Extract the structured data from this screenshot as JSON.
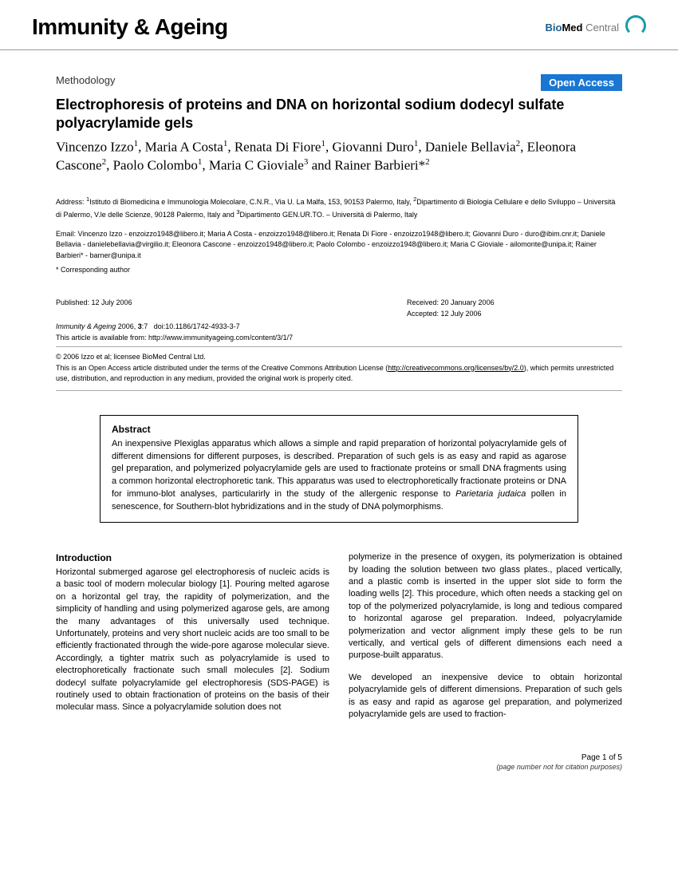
{
  "journal": "Immunity & Ageing",
  "publisher": {
    "bio": "Bio",
    "med": "Med",
    "central": " Central"
  },
  "category": "Methodology",
  "open_access": "Open Access",
  "title": "Electrophoresis of proteins and DNA on horizontal sodium dodecyl sulfate polyacrylamide gels",
  "authors_html": "Vincenzo Izzo<sup>1</sup>, Maria A Costa<sup>1</sup>, Renata Di Fiore<sup>1</sup>, Giovanni Duro<sup>1</sup>, Daniele Bellavia<sup>2</sup>, Eleonora Cascone<sup>2</sup>, Paolo Colombo<sup>1</sup>, Maria C Gioviale<sup>3</sup> and Rainer Barbieri*<sup>2</sup>",
  "address": "Address: <sup>1</sup>Istituto di Biomedicina e Immunologia Molecolare, C.N.R., Via U. La Malfa, 153, 90153 Palermo, Italy, <sup>2</sup>Dipartimento di Biologia Cellulare e dello Sviluppo – Università di Palermo, V.le delle Scienze, 90128 Palermo, Italy and <sup>3</sup>Dipartimento GEN.UR.TO. – Università di Palermo, Italy",
  "emails": "Email: Vincenzo Izzo - enzoizzo1948@libero.it; Maria A Costa - enzoizzo1948@libero.it; Renata Di Fiore - enzoizzo1948@libero.it; Giovanni Duro - duro@ibim.cnr.it; Daniele Bellavia - danielebellavia@virgilio.it; Eleonora Cascone - enzoizzo1948@libero.it; Paolo Colombo - enzoizzo1948@libero.it; Maria C Gioviale - ailomonte@unipa.it; Rainer Barbieri* - barner@unipa.it",
  "corresponding": "* Corresponding author",
  "published": "Published: 12 July 2006",
  "received": "Received: 20 January 2006",
  "accepted": "Accepted: 12 July 2006",
  "citation_html": "<em>Immunity & Ageing</em> 2006, <b>3</b>:7&nbsp;&nbsp;&nbsp;doi:10.1186/1742-4933-3-7",
  "available": "This article is available from: http://www.immunityageing.com/content/3/1/7",
  "copyright_line": "© 2006 Izzo et al; licensee BioMed Central Ltd.",
  "license_html": "This is an Open Access article distributed under the terms of the Creative Commons Attribution License (<a href=\"#\" data-interactable=\"true\" data-name=\"license-link\">http://creativecommons.org/licenses/by/2.0</a>), which permits unrestricted use, distribution, and reproduction in any medium, provided the original work is properly cited.",
  "abstract_heading": "Abstract",
  "abstract_html": "An inexpensive Plexiglas apparatus which allows a simple and rapid preparation of horizontal polyacrylamide gels of different dimensions for different purposes, is described. Preparation of such gels is as easy and rapid as agarose gel preparation, and polymerized polyacrylamide gels are used to fractionate proteins or small DNA fragments using a common horizontal electrophoretic tank. This apparatus was used to electrophoretically fractionate proteins or DNA for immuno-blot analyses, particularirly in the study of the allergenic response to <em>Parietaria judaica</em> pollen in senescence, for Southern-blot hybridizations and in the study of DNA polymorphisms.",
  "intro_heading": "Introduction",
  "col1": "Horizontal submerged agarose gel electrophoresis of nucleic acids is a basic tool of modern molecular biology [1]. Pouring melted agarose on a horizontal gel tray, the rapidity of polymerization, and the simplicity of handling and using polymerized agarose gels, are among the many advantages of this universally used technique. Unfortunately, proteins and very short nucleic acids are too small to be efficiently fractionated through the wide-pore agarose molecular sieve. Accordingly, a tighter matrix such as polyacrylamide is used to electrophoretically fractionate such small molecules [2]. Sodium dodecyl sulfate polyacrylamide gel electrophoresis (SDS-PAGE) is routinely used to obtain fractionation of proteins on the basis of their molecular mass. Since a polyacrylamide solution does not",
  "col2a": "polymerize in the presence of oxygen, its polymerization is obtained by loading the solution between two glass plates., placed vertically, and a plastic comb is inserted in the upper slot side to form the loading wells [2]. This procedure, which often needs a stacking gel on top of the polymerized polyacrylamide, is long and tedious compared to horizontal agarose gel preparation. Indeed, polyacrylamide polymerization and vector alignment imply these gels to be run vertically, and vertical gels of different dimensions each need a purpose-built apparatus.",
  "col2b": "We developed an inexpensive device to obtain horizontal polyacrylamide gels of different dimensions. Preparation of such gels is as easy and rapid as agarose gel preparation, and polymerized polyacrylamide gels are used to fraction-",
  "footer_page": "Page 1 of 5",
  "footer_note": "(page number not for citation purposes)"
}
